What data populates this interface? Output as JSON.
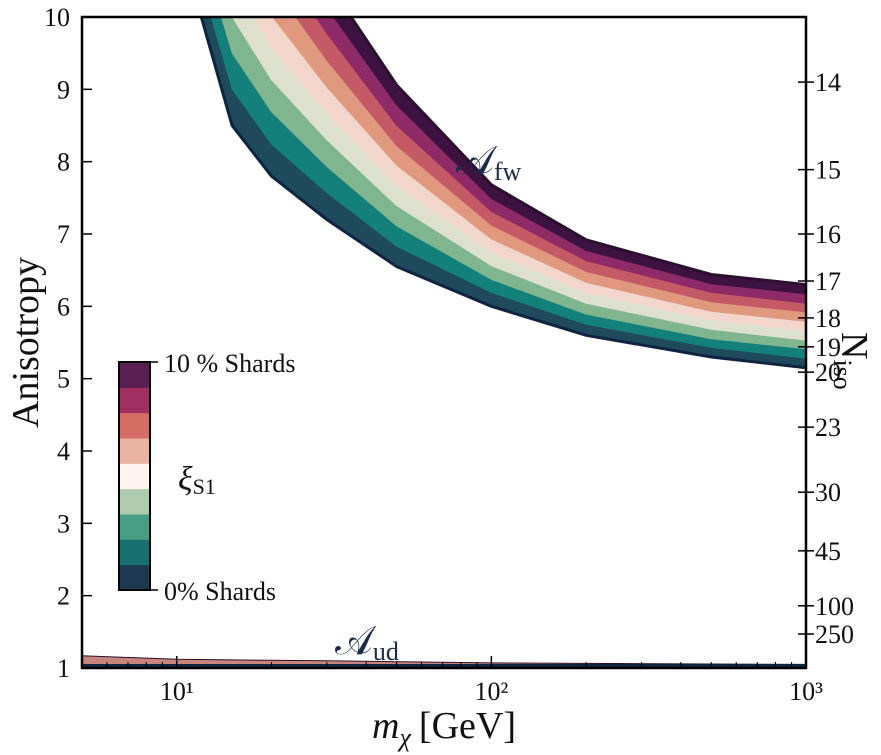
{
  "chart_data": {
    "type": "band",
    "ylabel": "Anisotropy",
    "xlabel": {
      "base": "m",
      "sub": "χ",
      "unit": "[GeV]"
    },
    "y2label": {
      "base": "N",
      "sub": "iso"
    },
    "xscale": "log",
    "xlim": [
      5,
      1000
    ],
    "xticks": [
      {
        "value": 10,
        "label": "10¹"
      },
      {
        "value": 100,
        "label": "10²"
      },
      {
        "value": 1000,
        "label": "10³"
      }
    ],
    "ylim": [
      1,
      10
    ],
    "yticks": [
      1,
      2,
      3,
      4,
      5,
      6,
      7,
      8,
      9,
      10
    ],
    "y2ticks": [
      14,
      15,
      16,
      17,
      18,
      19,
      20,
      23,
      30,
      45,
      100,
      250
    ],
    "y2tick_positions": [
      9.1,
      7.89,
      7.0,
      6.35,
      5.84,
      5.44,
      5.09,
      4.33,
      3.43,
      2.62,
      1.86,
      1.47
    ],
    "band_x": [
      10,
      15,
      20,
      30,
      50,
      100,
      200,
      500,
      1000
    ],
    "boundaries": [
      [
        11.2,
        8.5,
        7.8,
        7.2,
        6.55,
        6.0,
        5.6,
        5.3,
        5.15
      ],
      [
        11.62,
        9,
        8.24,
        7.57,
        6.83,
        6.19,
        5.75,
        5.43,
        5.28
      ],
      [
        12.04,
        9.5,
        8.69,
        7.93,
        7.11,
        6.37,
        5.89,
        5.55,
        5.41
      ],
      [
        12.47,
        10,
        9.13,
        8.3,
        7.39,
        6.56,
        6.04,
        5.68,
        5.53
      ],
      [
        12.89,
        10.5,
        9.58,
        8.67,
        7.67,
        6.75,
        6.19,
        5.81,
        5.66
      ],
      [
        13.31,
        11,
        10.02,
        9.03,
        7.95,
        6.93,
        6.33,
        5.93,
        5.79
      ],
      [
        13.73,
        11.5,
        10.47,
        9.4,
        8.22,
        7.12,
        6.48,
        6.06,
        5.92
      ],
      [
        14.16,
        12,
        10.91,
        9.77,
        8.5,
        7.31,
        6.63,
        6.19,
        6.04
      ],
      [
        14.58,
        12.5,
        11.36,
        10.13,
        8.78,
        7.49,
        6.77,
        6.31,
        6.17
      ],
      [
        15,
        13,
        11.8,
        10.5,
        9.06,
        7.68,
        6.92,
        6.44,
        6.3
      ]
    ],
    "band_colors": [
      "#1e4a5c",
      "#13807a",
      "#7fb58f",
      "#dde0cf",
      "#f2d6cc",
      "#e0987f",
      "#c45a66",
      "#8e2a66",
      "#3d1240"
    ],
    "colorbar_colors": [
      "#1d3a52",
      "#176f6e",
      "#4a9e86",
      "#aecbae",
      "#fdf3ef",
      "#e8b3a0",
      "#d46d63",
      "#9e2f5e",
      "#5a1f52"
    ],
    "edge_colors": [
      "#0f2440",
      "#2b0f2e"
    ],
    "ud_x": [
      5,
      10,
      30,
      100,
      1000
    ],
    "ud_upper": [
      1.17,
      1.12,
      1.1,
      1.07,
      1.05
    ],
    "ud_color": "#c9857c",
    "annotations": [
      {
        "base": "𝒜",
        "sub": "fw"
      },
      {
        "base": "𝒜",
        "sub": "ud"
      }
    ],
    "colorbar": {
      "top_label": "10 % Shards",
      "bottom_label": "0% Shards",
      "label": {
        "base": "ξ",
        "sub": "S1"
      }
    }
  }
}
